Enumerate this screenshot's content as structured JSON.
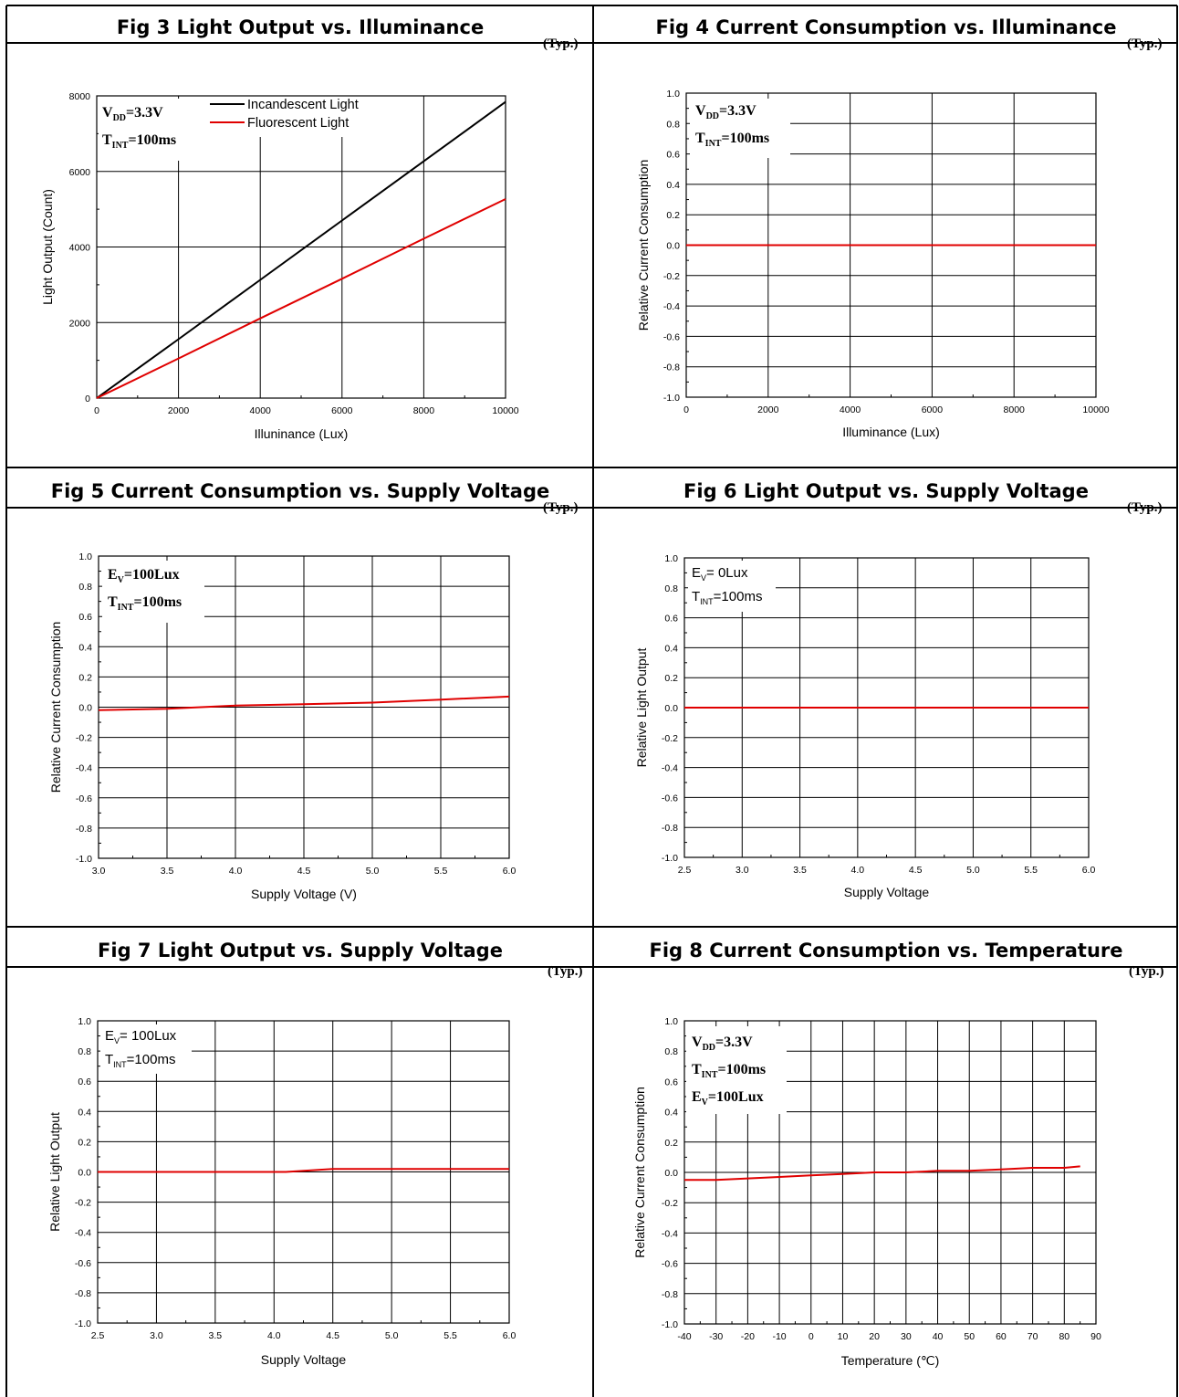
{
  "typ_label": "(Typ.)",
  "chart_data": [
    {
      "type": "line",
      "title": "Fig 3 Light Output vs. Illuminance",
      "xlabel": "Illuninance (Lux)",
      "ylabel": "Light Output (Count)",
      "xlim": [
        0,
        10000
      ],
      "ylim": [
        0,
        8000
      ],
      "xticks": [
        "0",
        "2000",
        "4000",
        "6000",
        "8000",
        "10000"
      ],
      "yticks": [
        "0",
        "2000",
        "4000",
        "6000",
        "8000"
      ],
      "grid": true,
      "annotations": [
        {
          "main": "V",
          "sub": "DD",
          "rest": "=3.3V",
          "style": "serif"
        },
        {
          "main": "T",
          "sub": "INT",
          "rest": "=100ms",
          "style": "serif"
        }
      ],
      "legend": {
        "placement": "top"
      },
      "series": [
        {
          "name": "Incandescent Light",
          "color": "#000000",
          "x": [
            0,
            2000,
            4000,
            6000,
            8000,
            10000
          ],
          "y": [
            0,
            1560,
            3130,
            4700,
            6270,
            7840
          ]
        },
        {
          "name": "Fluorescent Light",
          "color": "#e00000",
          "x": [
            0,
            2000,
            4000,
            6000,
            8000,
            10000
          ],
          "y": [
            0,
            1050,
            2110,
            3160,
            4220,
            5270
          ]
        }
      ]
    },
    {
      "type": "line",
      "title": "Fig 4 Current Consumption vs. Illuminance",
      "xlabel": "Illuminance (Lux)",
      "ylabel": "Relative Current Consumption",
      "xlim": [
        0,
        10000
      ],
      "ylim": [
        -1.0,
        1.0
      ],
      "xticks": [
        "0",
        "2000",
        "4000",
        "6000",
        "8000",
        "10000"
      ],
      "yticks": [
        "-1.0",
        "-0.8",
        "-0.6",
        "-0.4",
        "-0.2",
        "0.0",
        "0.2",
        "0.4",
        "0.6",
        "0.8",
        "1.0"
      ],
      "grid": true,
      "annotations": [
        {
          "main": "V",
          "sub": "DD",
          "rest": "=3.3V",
          "style": "serif"
        },
        {
          "main": "T",
          "sub": "INT",
          "rest": "=100ms",
          "style": "serif"
        }
      ],
      "series": [
        {
          "color": "#e00000",
          "x": [
            0,
            2000,
            4000,
            6000,
            8000,
            10000
          ],
          "y": [
            0,
            0,
            0,
            0,
            0,
            0
          ]
        }
      ]
    },
    {
      "type": "line",
      "title": "Fig 5 Current Consumption vs. Supply Voltage",
      "xlabel": "Supply Voltage (V)",
      "ylabel": "Relative Current Consumption",
      "xlim": [
        3.0,
        6.0
      ],
      "ylim": [
        -1.0,
        1.0
      ],
      "xticks": [
        "3.0",
        "3.5",
        "4.0",
        "4.5",
        "5.0",
        "5.5",
        "6.0"
      ],
      "yticks": [
        "-1.0",
        "-0.8",
        "-0.6",
        "-0.4",
        "-0.2",
        "0.0",
        "0.2",
        "0.4",
        "0.6",
        "0.8",
        "1.0"
      ],
      "grid": true,
      "annotations": [
        {
          "main": "E",
          "sub": "V",
          "rest": "=100Lux",
          "style": "serif"
        },
        {
          "main": "T",
          "sub": "INT",
          "rest": "=100ms",
          "style": "serif"
        }
      ],
      "series": [
        {
          "color": "#e00000",
          "x": [
            3.0,
            3.5,
            4.0,
            4.5,
            5.0,
            5.5,
            6.0
          ],
          "y": [
            -0.02,
            -0.01,
            0.01,
            0.02,
            0.03,
            0.05,
            0.07
          ]
        }
      ]
    },
    {
      "type": "line",
      "title": "Fig 6 Light Output vs. Supply Voltage",
      "xlabel": "Supply Voltage",
      "ylabel": "Relative Light Output",
      "xlim": [
        2.5,
        6.0
      ],
      "ylim": [
        -1.0,
        1.0
      ],
      "xticks": [
        "2.5",
        "3.0",
        "3.5",
        "4.0",
        "4.5",
        "5.0",
        "5.5",
        "6.0"
      ],
      "yticks": [
        "-1.0",
        "-0.8",
        "-0.6",
        "-0.4",
        "-0.2",
        "0.0",
        "0.2",
        "0.4",
        "0.6",
        "0.8",
        "1.0"
      ],
      "grid": true,
      "annotations": [
        {
          "main": "E",
          "sub": "V",
          "rest": "= 0Lux",
          "style": "sans"
        },
        {
          "main": "T",
          "sub": "INT",
          "rest": "=100ms",
          "style": "sans"
        }
      ],
      "series": [
        {
          "color": "#e00000",
          "x": [
            2.5,
            3.0,
            3.5,
            4.0,
            4.5,
            5.0,
            5.5,
            6.0
          ],
          "y": [
            0,
            0,
            0,
            0,
            0,
            0,
            0,
            0
          ]
        }
      ]
    },
    {
      "type": "line",
      "title": "Fig 7 Light Output vs. Supply Voltage",
      "xlabel": "Supply Voltage",
      "ylabel": "Relative Light Output",
      "xlim": [
        2.5,
        6.0
      ],
      "ylim": [
        -1.0,
        1.0
      ],
      "xticks": [
        "2.5",
        "3.0",
        "3.5",
        "4.0",
        "4.5",
        "5.0",
        "5.5",
        "6.0"
      ],
      "yticks": [
        "-1.0",
        "-0.8",
        "-0.6",
        "-0.4",
        "-0.2",
        "0.0",
        "0.2",
        "0.4",
        "0.6",
        "0.8",
        "1.0"
      ],
      "grid": true,
      "annotations": [
        {
          "main": "E",
          "sub": "V",
          "rest": "= 100Lux",
          "style": "sans"
        },
        {
          "main": "T",
          "sub": "INT",
          "rest": "=100ms",
          "style": "sans"
        }
      ],
      "series": [
        {
          "color": "#e00000",
          "x": [
            2.5,
            3.0,
            3.5,
            4.0,
            4.1,
            4.5,
            5.0,
            5.5,
            6.0
          ],
          "y": [
            0,
            0,
            0,
            0,
            0,
            0.02,
            0.02,
            0.02,
            0.02
          ]
        }
      ]
    },
    {
      "type": "line",
      "title": "Fig 8 Current Consumption vs. Temperature",
      "xlabel": "Temperature (℃)",
      "ylabel": "Relative Current Consumption",
      "xlim": [
        -40,
        90
      ],
      "ylim": [
        -1.0,
        1.0
      ],
      "xticks": [
        "-40",
        "-30",
        "-20",
        "-10",
        "0",
        "10",
        "20",
        "30",
        "40",
        "50",
        "60",
        "70",
        "80",
        "90"
      ],
      "yticks": [
        "-1.0",
        "-0.8",
        "-0.6",
        "-0.4",
        "-0.2",
        "0.0",
        "0.2",
        "0.4",
        "0.6",
        "0.8",
        "1.0"
      ],
      "grid": true,
      "annotations": [
        {
          "main": "V",
          "sub": "DD",
          "rest": "=3.3V",
          "style": "serif"
        },
        {
          "main": "T",
          "sub": "INT",
          "rest": "=100ms",
          "style": "serif"
        },
        {
          "main": "E",
          "sub": "V",
          "rest": "=100Lux",
          "style": "serif"
        }
      ],
      "series": [
        {
          "color": "#e00000",
          "x": [
            -40,
            -30,
            -20,
            -10,
            0,
            10,
            20,
            30,
            40,
            50,
            60,
            70,
            80,
            85
          ],
          "y": [
            -0.05,
            -0.05,
            -0.04,
            -0.03,
            -0.02,
            -0.01,
            0,
            0,
            0.01,
            0.01,
            0.02,
            0.03,
            0.03,
            0.04
          ]
        }
      ]
    }
  ]
}
